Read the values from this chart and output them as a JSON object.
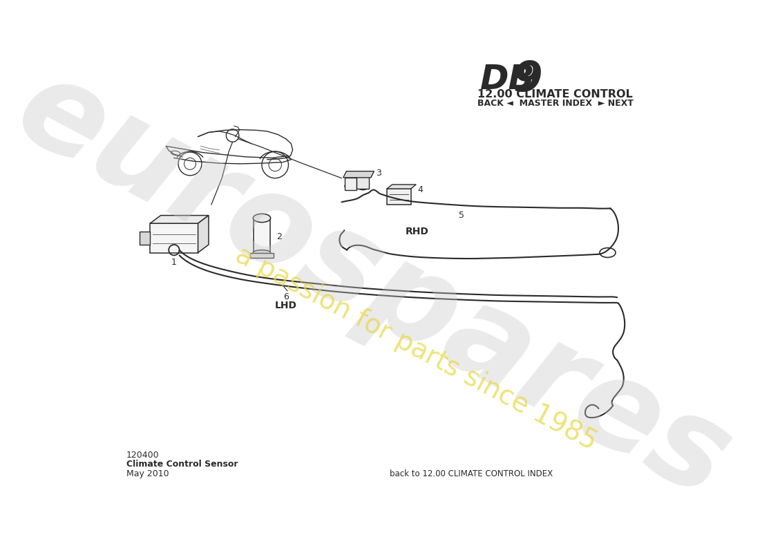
{
  "title_db9_part1": "DB",
  "title_db9_part2": "9",
  "title_section": "12.00 CLIMATE CONTROL",
  "nav_text": "BACK ◄  MASTER INDEX  ► NEXT",
  "part_number": "120400",
  "part_name": "Climate Control Sensor",
  "date": "May 2010",
  "footer_right": "back to 12.00 CLIMATE CONTROL INDEX",
  "bg_color": "#ffffff",
  "line_color": "#2a2a2a",
  "watermark_gray": "#c8c8c8",
  "watermark_yellow": "#e8d840"
}
